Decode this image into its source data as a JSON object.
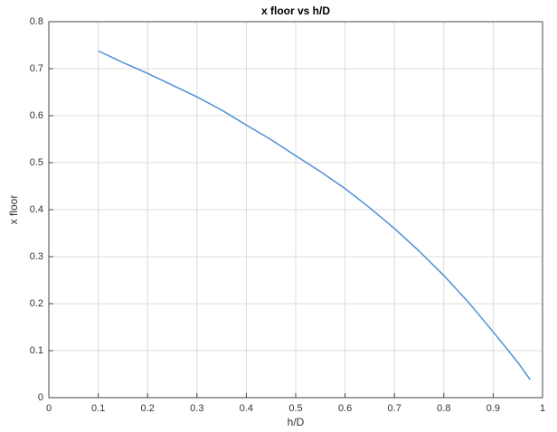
{
  "chart_data": {
    "type": "line",
    "title": "x floor vs h/D",
    "xlabel": "h/D",
    "ylabel": "x floor",
    "x": [
      0.1,
      0.15,
      0.2,
      0.25,
      0.3,
      0.35,
      0.4,
      0.45,
      0.5,
      0.55,
      0.6,
      0.65,
      0.7,
      0.75,
      0.8,
      0.85,
      0.9,
      0.95,
      0.975
    ],
    "values": [
      0.738,
      0.713,
      0.69,
      0.665,
      0.64,
      0.612,
      0.58,
      0.549,
      0.515,
      0.481,
      0.445,
      0.404,
      0.36,
      0.312,
      0.26,
      0.203,
      0.14,
      0.075,
      0.038
    ],
    "color": "#4f8fd6",
    "xlim": [
      0,
      1
    ],
    "xticks": [
      0,
      0.1,
      0.2,
      0.3,
      0.4,
      0.5,
      0.6,
      0.7,
      0.8,
      0.9,
      1
    ],
    "ylim": [
      0,
      0.8
    ],
    "yticks": [
      0,
      0.1,
      0.2,
      0.3,
      0.4,
      0.5,
      0.6,
      0.7,
      0.8
    ],
    "grid": true
  }
}
